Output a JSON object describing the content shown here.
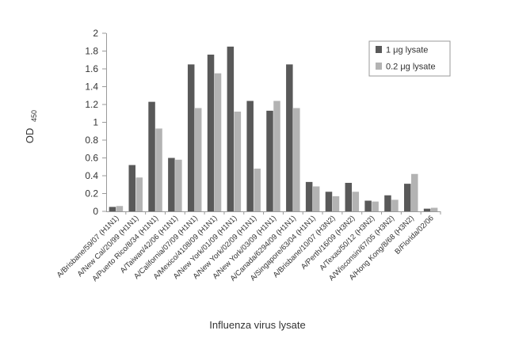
{
  "chart_data": {
    "type": "bar",
    "title": "",
    "xlabel": "Influenza virus lysate",
    "ylabel": "OD",
    "ylabel_sub": "450",
    "ylim": [
      0,
      2
    ],
    "yticks": [
      0,
      0.2,
      0.4,
      0.6,
      0.8,
      1,
      1.2,
      1.4,
      1.6,
      1.8,
      2
    ],
    "grid": false,
    "legend_position": "top-right",
    "categories": [
      "A/Brisbane/59/07 (H1N1)",
      "A/New Cal/20/99 (H1N1)",
      "A/Puerto Rico/8/34 (H1N1)",
      "A/Taiwan/42/06 (H1N1)",
      "A/California/07/09 (H1N1)",
      "A/Mexico/4108/09 (H1N1)",
      "A/New York/01/09 (H1N1)",
      "A/New York/02/09 (H1N1)",
      "A/New York/03/09 (H1N1)",
      "A/Canada/6294/09 (H1N1)",
      "A/Singapore/63/04 (H1N1)",
      "A/Brisbane/10/07 (H3N2)",
      "A/Perth/16/09 (H3N2)",
      "A/Texas/50/12 (H3N2)",
      "A/Wisconsin/67/05 (H3N2)",
      "A/Hong Kong/8/68 (H3N2)",
      "B/Florida/02/06"
    ],
    "series": [
      {
        "name": "1 μg lysate",
        "color": "#595959",
        "values": [
          0.05,
          0.52,
          1.23,
          0.6,
          1.65,
          1.76,
          1.85,
          1.24,
          1.13,
          1.65,
          0.33,
          0.22,
          0.32,
          0.12,
          0.18,
          0.31,
          0.03
        ]
      },
      {
        "name": "0.2 μg lysate",
        "color": "#b3b3b3",
        "values": [
          0.06,
          0.38,
          0.93,
          0.58,
          1.16,
          1.55,
          1.12,
          0.48,
          1.24,
          1.16,
          0.28,
          0.17,
          0.22,
          0.11,
          0.13,
          0.42,
          0.04
        ]
      }
    ]
  }
}
